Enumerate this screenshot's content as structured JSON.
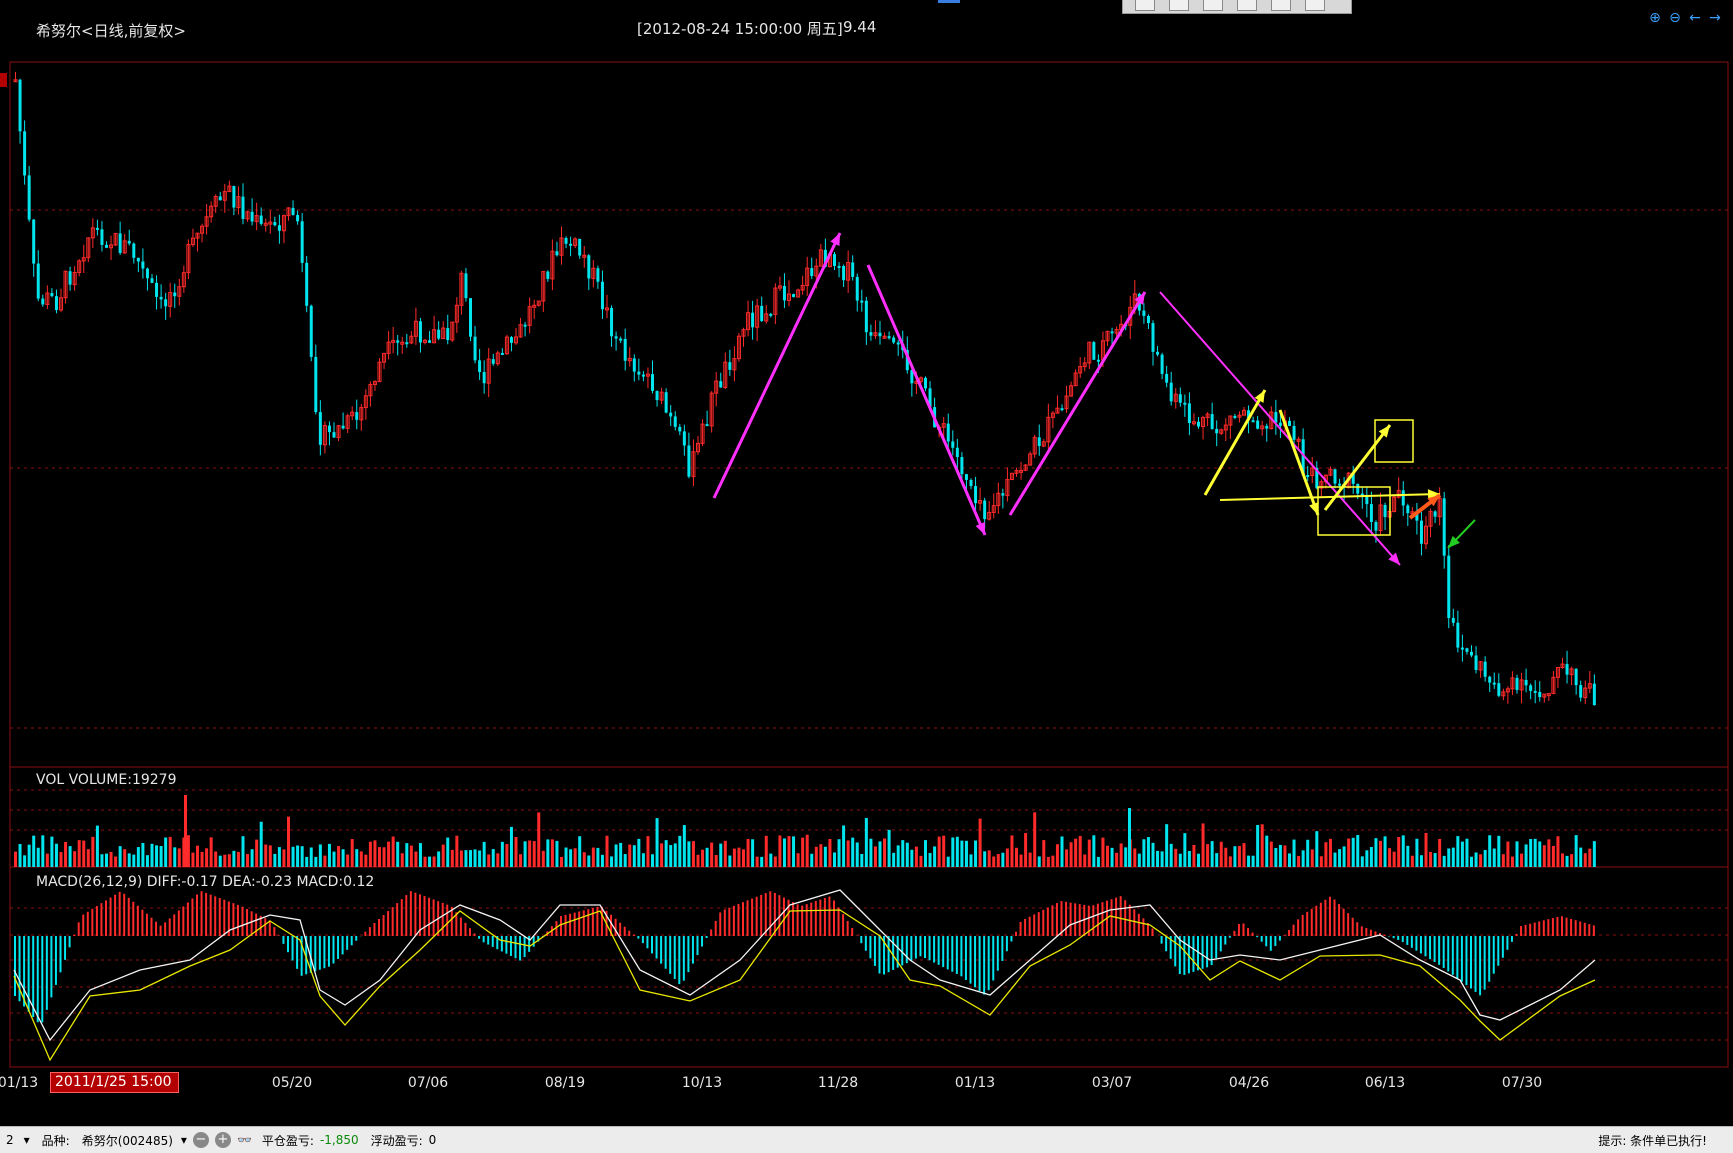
{
  "header": {
    "stock_title": "希努尔<日线,前复权>",
    "cursor_info": "[2012-08-24  15:00:00 周五]",
    "cursor_price": "9.44"
  },
  "volume_panel": {
    "label": "VOL  VOLUME:19279"
  },
  "macd_panel": {
    "label": "MACD(26,12,9)  DIFF:-0.17 DEA:-0.23 MACD:0.12"
  },
  "x_axis": {
    "ticks": [
      "01/13",
      "05/20",
      "07/06",
      "08/19",
      "10/13",
      "11/28",
      "01/13",
      "03/07",
      "04/26",
      "06/13",
      "07/30"
    ],
    "tooltip": "2011/1/25 15:00"
  },
  "status_bar": {
    "left_value": "2",
    "symbol_label": "品种:",
    "symbol_value": "希努尔(002485)",
    "closed_pl_label": "平仓盈亏:",
    "closed_pl_value": "-1,850",
    "floating_pl_label": "浮动盈亏:",
    "floating_pl_value": "0",
    "hint": "提示:  条件单已执行!"
  },
  "icons": [
    "zoom-in-icon",
    "zoom-out-icon",
    "arrow-left-icon",
    "arrow-right-icon",
    "minus-circle-icon",
    "plus-circle-icon",
    "glasses-icon"
  ],
  "colors": {
    "up": "#ff2a2a",
    "down": "#00e5ee",
    "magenta_annotation": "#ff30ff",
    "yellow_annotation": "#ffff33",
    "orange_annotation": "#ff5a1a",
    "green_annotation": "#22cc22",
    "grid": "#8a1010"
  }
}
